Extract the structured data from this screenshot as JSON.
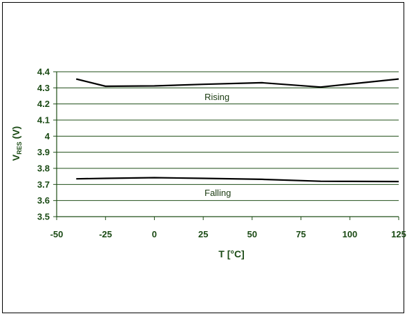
{
  "colors": {
    "grid": "#1e4d16",
    "line": "#000000",
    "text": "#1a4a14"
  },
  "chart_data": {
    "type": "line",
    "xlabel": "T [°C]",
    "ylabel": {
      "main": "V",
      "sub": "RES",
      "suffix": " (V)"
    },
    "xlim": [
      -50,
      125
    ],
    "ylim": [
      3.5,
      4.4
    ],
    "xticks": [
      "-50",
      "-25",
      "0",
      "25",
      "50",
      "75",
      "100",
      "125"
    ],
    "yticks": [
      "3.5",
      "3.6",
      "3.7",
      "3.8",
      "3.9",
      "4",
      "4.1",
      "4.2",
      "4.3",
      "4.4"
    ],
    "grid": "horizontal",
    "legend": "none",
    "series": [
      {
        "label": "Rising",
        "x": [
          -40,
          -25,
          0,
          25,
          55,
          85,
          125
        ],
        "y": [
          4.355,
          4.31,
          4.312,
          4.322,
          4.332,
          4.305,
          4.355
        ]
      },
      {
        "label": "Falling",
        "x": [
          -40,
          -25,
          0,
          25,
          55,
          85,
          125
        ],
        "y": [
          3.735,
          3.738,
          3.742,
          3.738,
          3.732,
          3.72,
          3.718
        ]
      }
    ]
  }
}
